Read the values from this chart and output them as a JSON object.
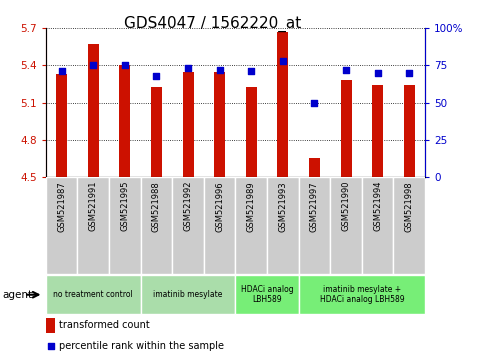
{
  "title": "GDS4047 / 1562220_at",
  "samples": [
    "GSM521987",
    "GSM521991",
    "GSM521995",
    "GSM521988",
    "GSM521992",
    "GSM521996",
    "GSM521989",
    "GSM521993",
    "GSM521997",
    "GSM521990",
    "GSM521994",
    "GSM521998"
  ],
  "bar_values": [
    5.33,
    5.57,
    5.4,
    5.23,
    5.35,
    5.35,
    5.23,
    5.67,
    4.65,
    5.28,
    5.24,
    5.24
  ],
  "dot_values": [
    71,
    75,
    75,
    68,
    73,
    72,
    71,
    78,
    50,
    72,
    70,
    70
  ],
  "ylim_left": [
    4.5,
    5.7
  ],
  "ylim_right": [
    0,
    100
  ],
  "yticks_left": [
    4.5,
    4.8,
    5.1,
    5.4,
    5.7
  ],
  "yticks_right": [
    0,
    25,
    50,
    75,
    100
  ],
  "ytick_labels_left": [
    "4.5",
    "4.8",
    "5.1",
    "5.4",
    "5.7"
  ],
  "ytick_labels_right": [
    "0",
    "25",
    "50",
    "75",
    "100%"
  ],
  "bar_color": "#cc1100",
  "dot_color": "#0000cc",
  "grid_color": "#000000",
  "background_plot": "#ffffff",
  "xtick_bg_color": "#cccccc",
  "xtick_border_color": "#ffffff",
  "agent_groups": [
    {
      "label": "no treatment control",
      "color": "#aaddaa",
      "start": 0,
      "end": 3
    },
    {
      "label": "imatinib mesylate",
      "color": "#aaddaa",
      "start": 3,
      "end": 6
    },
    {
      "label": "HDACi analog\nLBH589",
      "color": "#77ee77",
      "start": 6,
      "end": 8
    },
    {
      "label": "imatinib mesylate +\nHDACi analog LBH589",
      "color": "#77ee77",
      "start": 8,
      "end": 12
    }
  ],
  "legend_bar_label": "transformed count",
  "legend_dot_label": "percentile rank within the sample",
  "agent_label": "agent",
  "title_fontsize": 11,
  "tick_fontsize": 7.5,
  "sample_fontsize": 6,
  "bar_width": 0.35
}
